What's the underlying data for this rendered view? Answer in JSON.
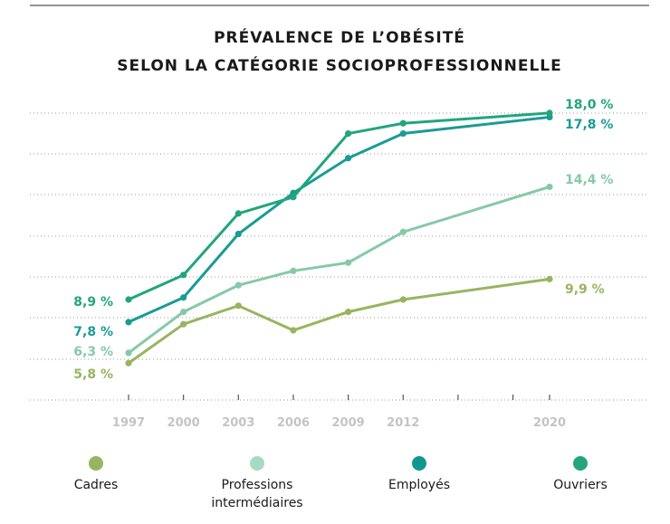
{
  "chart_data": {
    "type": "line",
    "title_lines": [
      "PRÉVALENCE DE L’OBÉSITÉ",
      "SELON LA CATÉGORIE SOCIOPROFESSIONNELLE"
    ],
    "x": [
      1997,
      2000,
      2003,
      2006,
      2009,
      2012,
      2020
    ],
    "x_tick_labels": [
      "1997",
      "2000",
      "2003",
      "2006",
      "2009",
      "2012",
      "2020"
    ],
    "xlim": [
      1997,
      2020
    ],
    "ylim": [
      4,
      18
    ],
    "grid": true,
    "legend_position": "bottom",
    "series": [
      {
        "name": "Cadres",
        "color": "#97b560",
        "values": [
          5.8,
          7.7,
          8.6,
          7.4,
          8.3,
          8.9,
          9.9
        ],
        "start_label": "5,8 %",
        "end_label": "9,9 %"
      },
      {
        "name": "Professions intermédiaires",
        "color": "#86c9a8",
        "values": [
          6.3,
          8.3,
          9.6,
          10.3,
          10.7,
          12.2,
          14.4
        ],
        "start_label": "6,3 %",
        "end_label": "14,4 %"
      },
      {
        "name": "Employés",
        "color": "#1a9b95",
        "values": [
          7.8,
          9.0,
          12.1,
          14.1,
          15.8,
          17.0,
          17.8
        ],
        "start_label": "7,8 %",
        "end_label": "17,8 %"
      },
      {
        "name": "Ouvriers",
        "color": "#22a57d",
        "values": [
          8.9,
          10.1,
          13.1,
          13.9,
          17.0,
          17.5,
          18.0
        ],
        "start_label": "8,9 %",
        "end_label": "18,0 %"
      }
    ],
    "legend": [
      {
        "lines": [
          "Cadres"
        ],
        "color": "#97b560"
      },
      {
        "lines": [
          "Professions",
          "intermédiaires"
        ],
        "color": "#a6dac3"
      },
      {
        "lines": [
          "Employés"
        ],
        "color": "#129690"
      },
      {
        "lines": [
          "Ouvriers"
        ],
        "color": "#22a57d"
      }
    ]
  }
}
